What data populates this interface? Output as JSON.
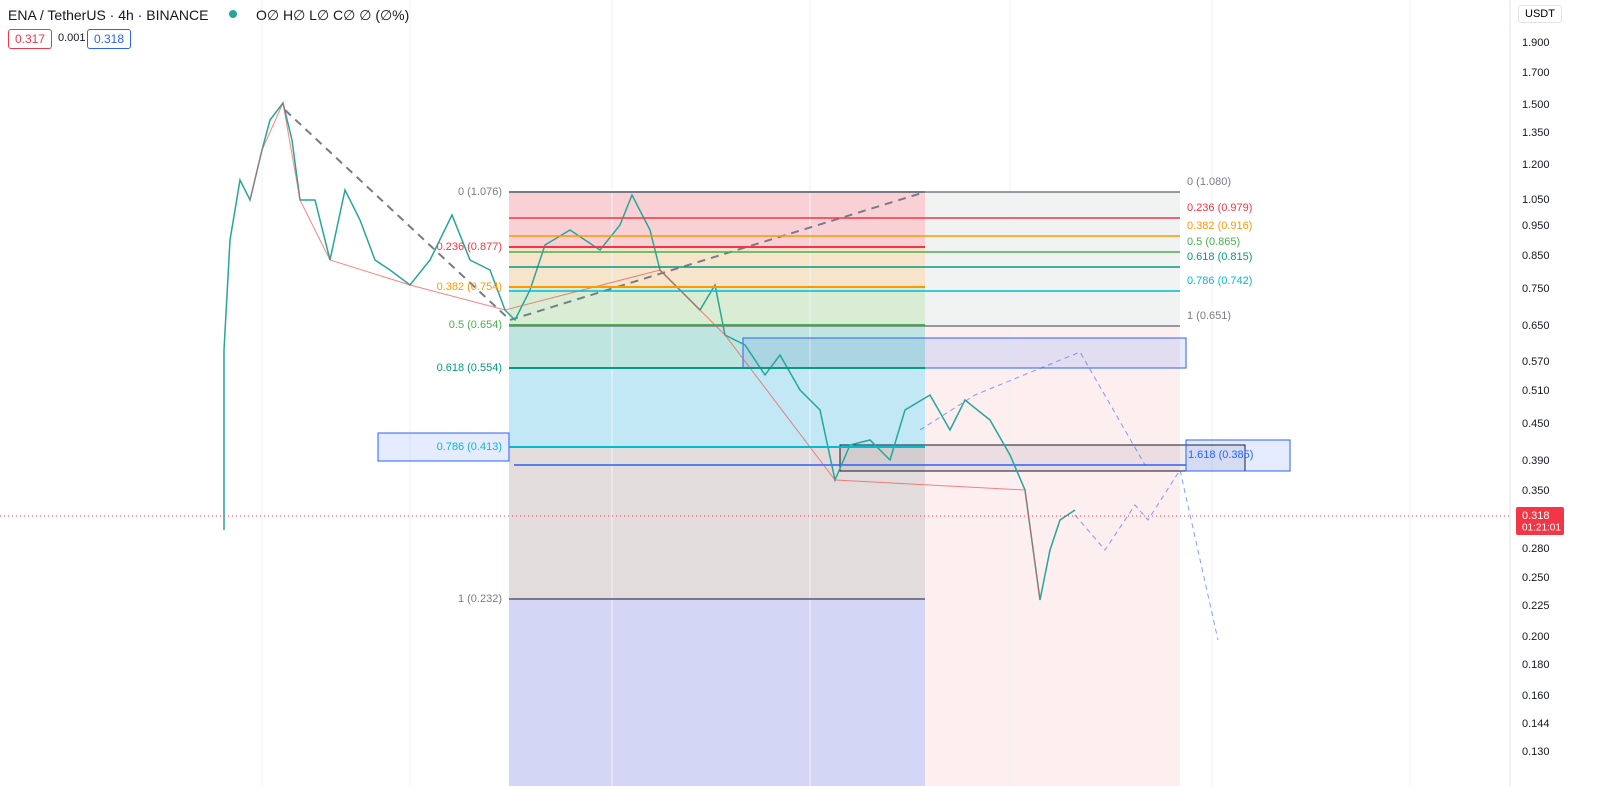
{
  "header": {
    "symbol": "ENA / TetherUS · 4h · BINANCE",
    "ohlc": "O∅ H∅ L∅ C∅ ∅ (∅%)",
    "bid": "0.317",
    "spread": "0.001",
    "ask": "0.318",
    "currency": "USDT"
  },
  "price_axis": {
    "labels": [
      "1.900",
      "1.700",
      "1.500",
      "1.350",
      "1.200",
      "1.050",
      "0.950",
      "0.850",
      "0.750",
      "0.650",
      "0.570",
      "0.510",
      "0.450",
      "0.390",
      "0.350",
      "0.280",
      "0.250",
      "0.225",
      "0.200",
      "0.180",
      "0.160",
      "0.144",
      "0.130"
    ],
    "current_price": "0.318",
    "countdown": "01:21:01"
  },
  "fib_retracement": {
    "levels": [
      "0 (1.076)",
      "0.236 (0.877)",
      "0.382 (0.754)",
      "0.5 (0.654)",
      "0.618 (0.554)",
      "0.786 (0.413)",
      "1 (0.232)"
    ]
  },
  "fib_right": {
    "levels": [
      "0 (1.080)",
      "0.236 (0.979)",
      "0.382 (0.916)",
      "0.5 (0.865)",
      "0.618 (0.815)",
      "0.786 (0.742)",
      "1 (0.651)"
    ]
  },
  "extension": {
    "label": "1.618 (0.385)"
  }
}
